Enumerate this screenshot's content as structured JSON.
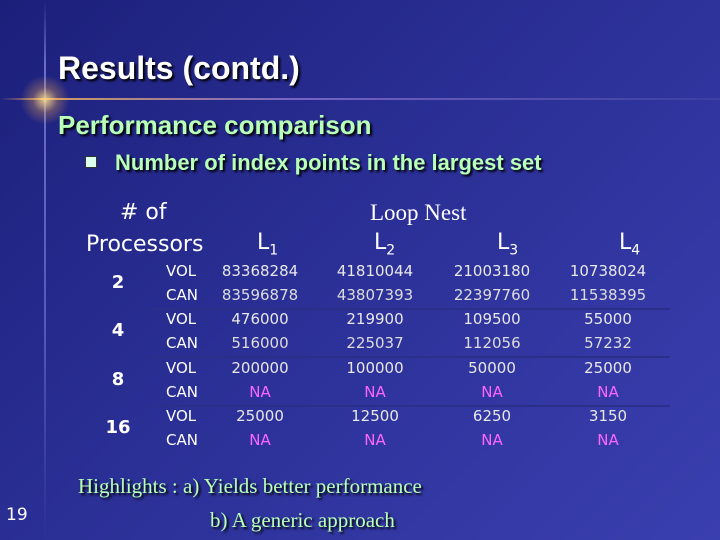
{
  "slide": {
    "title": "Results (contd.)",
    "subtitle": "Performance comparison",
    "bullet": "Number of index points in the largest set",
    "page_number": "19"
  },
  "table": {
    "processors_header": [
      "# of",
      "Processors"
    ],
    "loop_nest_header": "Loop Nest",
    "columns": [
      {
        "label": "L",
        "sub": "1"
      },
      {
        "label": "L",
        "sub": "2"
      },
      {
        "label": "L",
        "sub": "3"
      },
      {
        "label": "L",
        "sub": "4"
      }
    ],
    "rows": [
      {
        "processors": "2",
        "vol": [
          "83368284",
          "41810044",
          "21003180",
          "10738024"
        ],
        "can": [
          "83596878",
          "43807393",
          "22397760",
          "11538395"
        ]
      },
      {
        "processors": "4",
        "vol": [
          "476000",
          "219900",
          "109500",
          "55000"
        ],
        "can": [
          "516000",
          "225037",
          "112056",
          "57232"
        ]
      },
      {
        "processors": "8",
        "vol": [
          "200000",
          "100000",
          "50000",
          "25000"
        ],
        "can": [
          "NA",
          "NA",
          "NA",
          "NA"
        ]
      },
      {
        "processors": "16",
        "vol": [
          "25000",
          "12500",
          "6250",
          "3150"
        ],
        "can": [
          "NA",
          "NA",
          "NA",
          "NA"
        ]
      }
    ],
    "vol_label": "VOL",
    "can_label": "CAN"
  },
  "highlights": {
    "label": "Highlights :",
    "point_a": "a) Yields better performance",
    "point_b": "b) A generic approach"
  },
  "colors": {
    "title": "#ffffff",
    "subtitle": "#b8ffb8",
    "vol_values": "#e8e8e8",
    "can_values_numeric": "#dddddd",
    "na_values": "#ff66ff"
  }
}
